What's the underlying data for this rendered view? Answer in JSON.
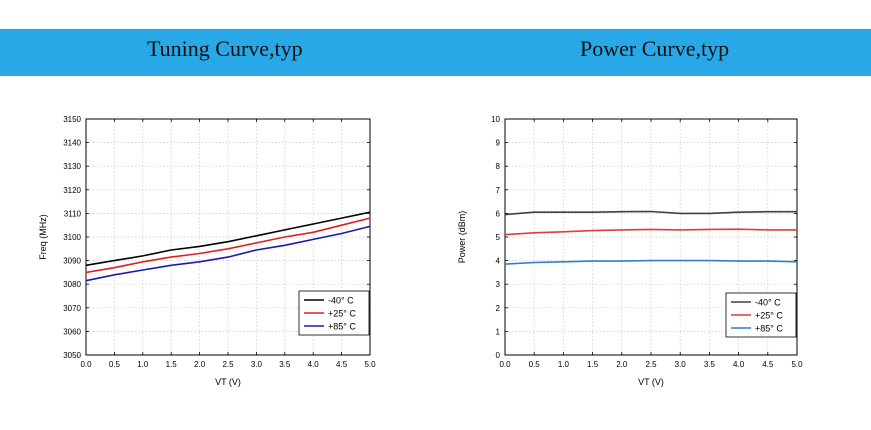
{
  "banner": {
    "left_title": "Tuning Curve,typ",
    "right_title": "Power Curve,typ"
  },
  "chart_data": [
    {
      "type": "line",
      "title": "",
      "xlabel": "VT (V)",
      "ylabel": "Freq (MHz)",
      "xlim": [
        0.0,
        5.0
      ],
      "ylim": [
        3050,
        3150
      ],
      "x_ticks": [
        "0.0",
        "0.5",
        "1.0",
        "1.5",
        "2.0",
        "2.5",
        "3.0",
        "3.5",
        "4.0",
        "4.5",
        "5.0"
      ],
      "y_ticks": [
        "3050",
        "3060",
        "3070",
        "3080",
        "3090",
        "3100",
        "3110",
        "3120",
        "3130",
        "3140",
        "3150"
      ],
      "grid": true,
      "legend": "bottom-right",
      "x": [
        0.0,
        0.5,
        1.0,
        1.5,
        2.0,
        2.5,
        3.0,
        3.5,
        4.0,
        4.5,
        5.0
      ],
      "series": [
        {
          "name": "-40° C",
          "color": "#000000",
          "values": [
            3088,
            3090,
            3092,
            3094.5,
            3096,
            3098,
            3100.5,
            3103,
            3105.5,
            3108,
            3110.5
          ]
        },
        {
          "name": "+25° C",
          "color": "#e02020",
          "values": [
            3085,
            3087,
            3089.5,
            3091.5,
            3093,
            3095,
            3097.5,
            3100,
            3102,
            3105,
            3108
          ]
        },
        {
          "name": "+85° C",
          "color": "#1a1ab0",
          "values": [
            3081.5,
            3084,
            3086,
            3088,
            3089.5,
            3091.5,
            3094.5,
            3096.5,
            3099,
            3101.5,
            3104.5
          ]
        }
      ]
    },
    {
      "type": "line",
      "title": "",
      "xlabel": "VT (V)",
      "ylabel": "Power (dBm)",
      "xlim": [
        0.0,
        5.0
      ],
      "ylim": [
        0,
        10
      ],
      "x_ticks": [
        "0.0",
        "0.5",
        "1.0",
        "1.5",
        "2.0",
        "2.5",
        "3.0",
        "3.5",
        "4.0",
        "4.5",
        "5.0"
      ],
      "y_ticks": [
        "0",
        "1",
        "2",
        "3",
        "4",
        "5",
        "6",
        "7",
        "8",
        "9",
        "10"
      ],
      "grid": true,
      "legend": "bottom-right",
      "x": [
        0.0,
        0.5,
        1.0,
        1.5,
        2.0,
        2.5,
        3.0,
        3.5,
        4.0,
        4.5,
        5.0
      ],
      "series": [
        {
          "name": "-40° C",
          "color": "#404040",
          "values": [
            5.95,
            6.05,
            6.05,
            6.05,
            6.07,
            6.08,
            6.0,
            6.0,
            6.05,
            6.07,
            6.07
          ]
        },
        {
          "name": "+25° C",
          "color": "#e03c3c",
          "values": [
            5.1,
            5.18,
            5.22,
            5.27,
            5.3,
            5.32,
            5.3,
            5.32,
            5.33,
            5.3,
            5.3
          ]
        },
        {
          "name": "+85° C",
          "color": "#2a7fd0",
          "values": [
            3.85,
            3.92,
            3.95,
            3.98,
            3.98,
            4.0,
            4.0,
            4.0,
            3.98,
            3.98,
            3.95
          ]
        }
      ]
    }
  ]
}
